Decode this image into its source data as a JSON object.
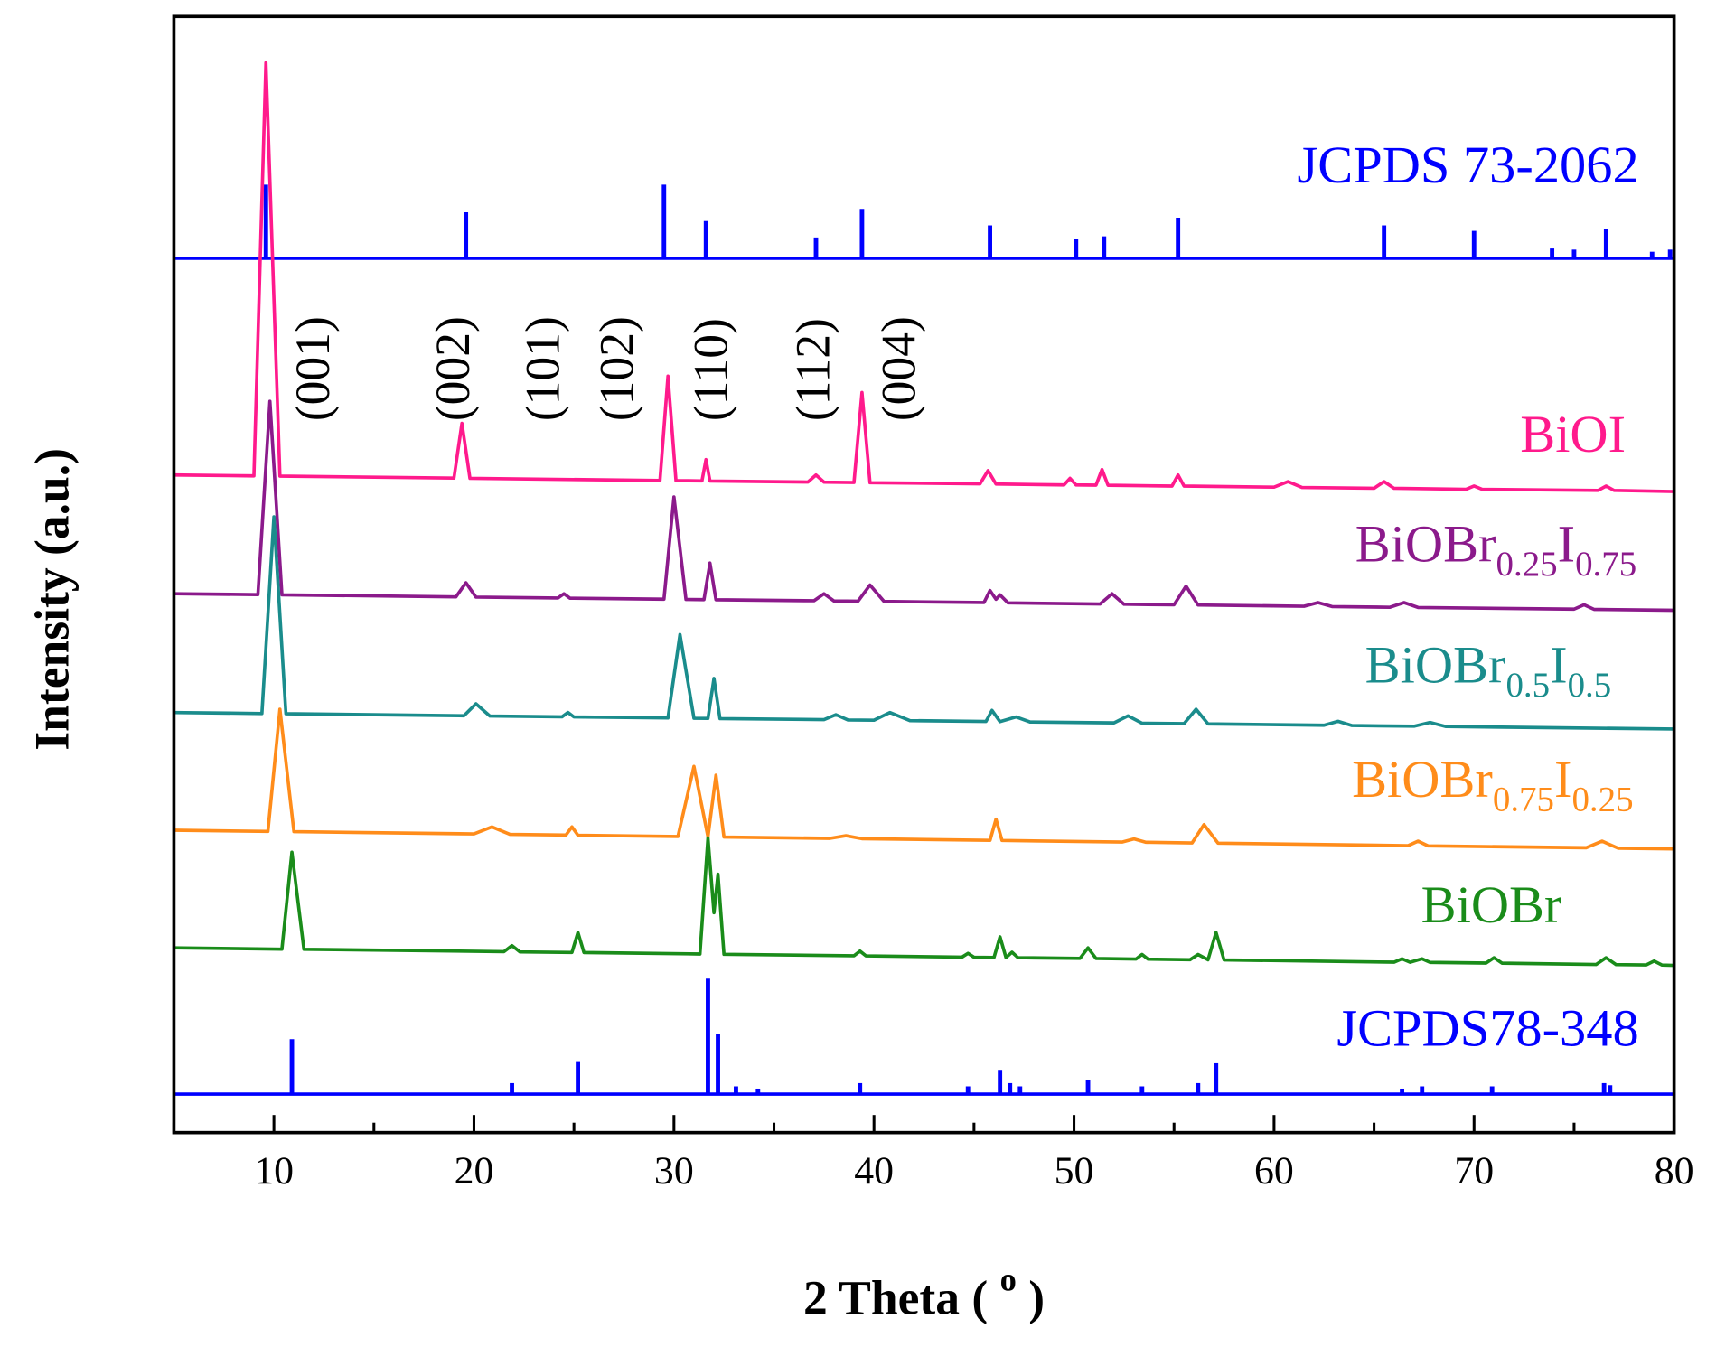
{
  "chart_data": {
    "type": "line",
    "x_label": "2 Theta ( o )",
    "y_label": "Intensity (a.u.)",
    "xlim": [
      5,
      80
    ],
    "xticks": [
      10,
      20,
      30,
      40,
      50,
      60,
      70,
      80
    ],
    "xminorticks": [
      5,
      15,
      25,
      35,
      45,
      55,
      65,
      75
    ],
    "ylim": [
      0,
      100
    ],
    "annotations": [
      {
        "text": "(001)",
        "x": 12.2
      },
      {
        "text": "(002)",
        "x": 19.2
      },
      {
        "text": "(101)",
        "x": 23.7
      },
      {
        "text": "(102)",
        "x": 27.4
      },
      {
        "text": "(110)",
        "x": 32.1
      },
      {
        "text": "(112)",
        "x": 37.2
      },
      {
        "text": "(004)",
        "x": 41.5
      }
    ],
    "series": [
      {
        "name": "JCPDS 73-2062",
        "style": "stick",
        "color": "#0000ff",
        "base": 78.33,
        "x": [
          9.6,
          19.6,
          29.5,
          31.6,
          37.1,
          39.4,
          45.8,
          50.1,
          51.5,
          55.2,
          65.5,
          70.0,
          73.9,
          75.0,
          76.6,
          78.9,
          79.8
        ],
        "values": [
          84.93,
          82.46,
          84.93,
          81.67,
          80.2,
          82.76,
          81.28,
          80.1,
          80.3,
          81.97,
          81.28,
          80.79,
          79.21,
          79.11,
          80.99,
          78.92,
          79.11
        ]
      },
      {
        "name": "BiOI",
        "style": "line",
        "color": "#ff1a8c",
        "x": [
          5,
          9,
          9.6,
          10.3,
          19,
          19.4,
          19.8,
          29.3,
          29.7,
          30.1,
          31.4,
          31.6,
          31.8,
          36.7,
          37.1,
          37.5,
          39.0,
          39.4,
          39.8,
          45.3,
          45.7,
          46.1,
          49.5,
          49.8,
          50.1,
          51.1,
          51.4,
          51.7,
          54.9,
          55.2,
          55.5,
          60.0,
          60.7,
          61.4,
          65.0,
          65.5,
          66.0,
          69.6,
          70.0,
          70.4,
          76.2,
          76.6,
          77.0,
          80
        ],
        "values": [
          58.92,
          58.84,
          95.86,
          58.82,
          58.64,
          63.55,
          58.62,
          58.43,
          67.78,
          58.42,
          58.39,
          60.3,
          58.38,
          58.29,
          58.92,
          58.28,
          58.25,
          66.31,
          58.23,
          58.13,
          59.31,
          58.11,
          58.03,
          58.62,
          58.03,
          58.01,
          59.41,
          58.0,
          57.93,
          58.92,
          57.93,
          57.83,
          58.33,
          57.8,
          57.73,
          58.33,
          57.73,
          57.64,
          57.93,
          57.64,
          57.54,
          57.93,
          57.54,
          57.44
        ]
      },
      {
        "name": "BiOBr0.25I0.75",
        "style": "line",
        "color": "#8b1a8b",
        "x": [
          5,
          9.2,
          9.8,
          10.4,
          19.1,
          19.6,
          20.1,
          24.2,
          24.5,
          24.8,
          29.5,
          30.0,
          30.6,
          31.5,
          31.8,
          32.1,
          37.0,
          37.5,
          38.0,
          39.2,
          39.8,
          40.5,
          45.5,
          45.8,
          46.1,
          46.3,
          46.7,
          51.3,
          51.9,
          52.5,
          55.0,
          55.6,
          56.2,
          61.5,
          62.2,
          62.9,
          65.8,
          66.5,
          67.2,
          75.0,
          75.5,
          76.0,
          80
        ],
        "values": [
          48.28,
          48.2,
          65.52,
          48.18,
          48.0,
          49.26,
          47.98,
          47.9,
          48.28,
          47.88,
          47.79,
          56.95,
          47.77,
          47.75,
          51.03,
          47.74,
          47.65,
          48.28,
          47.63,
          47.61,
          49.06,
          47.59,
          47.49,
          48.57,
          47.78,
          48.18,
          47.46,
          47.36,
          48.28,
          47.34,
          47.29,
          48.97,
          47.27,
          47.16,
          47.49,
          47.13,
          47.07,
          47.49,
          47.05,
          46.9,
          47.29,
          46.88,
          46.8
        ]
      },
      {
        "name": "BiOBr0.5I0.5",
        "style": "line",
        "color": "#1a8c8c",
        "x": [
          5,
          9.4,
          10.0,
          10.6,
          19.5,
          20.1,
          20.8,
          24.4,
          24.7,
          25.0,
          29.7,
          30.3,
          31.0,
          31.7,
          32.0,
          32.3,
          37.5,
          38.1,
          38.7,
          40.0,
          40.8,
          41.8,
          45.6,
          45.9,
          46.3,
          47.1,
          47.8,
          52.0,
          52.7,
          53.4,
          55.5,
          56.1,
          56.7,
          62.5,
          63.2,
          63.9,
          67.0,
          67.8,
          68.6,
          80
        ],
        "values": [
          37.64,
          37.55,
          55.17,
          37.53,
          37.35,
          38.42,
          37.32,
          37.25,
          37.64,
          37.24,
          37.15,
          44.63,
          37.12,
          37.11,
          40.69,
          37.09,
          37.0,
          37.44,
          36.97,
          36.95,
          37.64,
          36.91,
          36.84,
          37.83,
          36.82,
          37.24,
          36.79,
          36.71,
          37.34,
          36.68,
          36.64,
          37.93,
          36.62,
          36.5,
          36.85,
          36.47,
          36.41,
          36.75,
          36.38,
          36.16
        ]
      },
      {
        "name": "BiOBr0.75I0.25",
        "style": "line",
        "color": "#ff8c1a",
        "x": [
          5,
          9.7,
          10.3,
          11.0,
          20.0,
          20.9,
          21.8,
          24.6,
          24.9,
          25.2,
          30.2,
          31.0,
          31.7,
          32.1,
          32.5,
          37.8,
          38.6,
          39.4,
          45.8,
          46.1,
          46.4,
          52.4,
          53.0,
          53.6,
          55.9,
          56.5,
          57.2,
          66.7,
          67.2,
          67.7,
          75.6,
          76.4,
          77.2,
          80
        ],
        "values": [
          27.09,
          26.98,
          37.93,
          26.96,
          26.76,
          27.39,
          26.72,
          26.66,
          27.39,
          26.64,
          26.53,
          32.81,
          26.5,
          32.02,
          26.48,
          26.36,
          26.6,
          26.33,
          26.18,
          28.08,
          26.17,
          26.03,
          26.31,
          26.01,
          25.95,
          27.59,
          25.93,
          25.71,
          26.11,
          25.69,
          25.52,
          26.11,
          25.48,
          25.42
        ]
      },
      {
        "name": "BiOBr",
        "style": "line",
        "color": "#1a8c1a",
        "x": [
          5,
          10.4,
          10.9,
          11.5,
          21.5,
          21.9,
          22.3,
          24.9,
          25.2,
          25.5,
          31.3,
          31.7,
          32.0,
          32.2,
          32.5,
          39.0,
          39.3,
          39.6,
          44.4,
          44.7,
          45.0,
          46.0,
          46.3,
          46.6,
          46.9,
          47.2,
          50.3,
          50.7,
          51.1,
          53.1,
          53.4,
          53.7,
          55.8,
          56.2,
          56.7,
          57.1,
          57.5,
          66.0,
          66.4,
          66.8,
          67.4,
          67.8,
          70.6,
          71.0,
          71.4,
          76.1,
          76.6,
          77.1,
          78.6,
          79.0,
          79.4,
          80
        ],
        "values": [
          16.55,
          16.43,
          25.12,
          16.42,
          16.21,
          16.75,
          16.19,
          16.14,
          17.93,
          16.13,
          16.0,
          26.4,
          19.7,
          23.15,
          15.97,
          15.84,
          16.26,
          15.83,
          15.72,
          16.06,
          15.71,
          15.69,
          17.54,
          15.68,
          16.16,
          15.67,
          15.61,
          16.55,
          15.6,
          15.55,
          15.96,
          15.54,
          15.49,
          15.96,
          15.48,
          17.93,
          15.47,
          15.27,
          15.57,
          15.26,
          15.57,
          15.25,
          15.19,
          15.67,
          15.18,
          15.06,
          15.67,
          15.05,
          15.02,
          15.37,
          15.01,
          14.98
        ]
      },
      {
        "name": "JCPDS78-348",
        "style": "stick",
        "color": "#0000ff",
        "base": 3.45,
        "x": [
          10.9,
          21.9,
          25.2,
          31.7,
          32.2,
          33.1,
          34.2,
          39.3,
          44.7,
          46.3,
          46.8,
          47.3,
          50.7,
          53.4,
          56.2,
          57.1,
          66.4,
          67.4,
          70.9,
          76.5,
          76.8
        ],
        "values": [
          8.37,
          4.43,
          6.4,
          13.79,
          8.87,
          4.14,
          3.94,
          4.43,
          4.14,
          5.62,
          4.43,
          4.14,
          4.73,
          4.14,
          4.43,
          6.21,
          3.94,
          4.14,
          4.14,
          4.43,
          4.24
        ]
      }
    ]
  }
}
